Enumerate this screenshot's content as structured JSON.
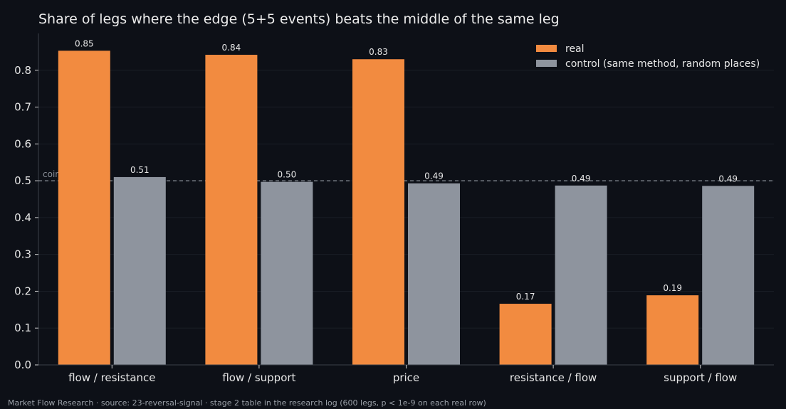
{
  "chart_data": {
    "type": "bar",
    "title": "Share of legs where the edge (5+5 events) beats the middle of the same leg",
    "categories": [
      "flow / resistance",
      "flow / support",
      "price",
      "resistance / flow",
      "support / flow"
    ],
    "series": [
      {
        "name": "real",
        "color": "#f28b40",
        "values": [
          0.853,
          0.842,
          0.83,
          0.166,
          0.189
        ],
        "labels": [
          "0.85",
          "0.84",
          "0.83",
          "0.17",
          "0.19"
        ]
      },
      {
        "name": "control (same method, random places)",
        "color": "#8e949e",
        "values": [
          0.51,
          0.497,
          0.493,
          0.487,
          0.486
        ],
        "labels": [
          "0.51",
          "0.50",
          "0.49",
          "0.49",
          "0.49"
        ]
      }
    ],
    "ylim": [
      0,
      0.9
    ],
    "yticks": [
      "0.0",
      "0.1",
      "0.2",
      "0.3",
      "0.4",
      "0.5",
      "0.6",
      "0.7",
      "0.8"
    ],
    "reference_line": {
      "value": 0.5,
      "label": "coin flip"
    },
    "legend_position": "top-right",
    "grid": true
  },
  "footer": "Market Flow Research · source: 23-reversal-signal · stage 2 table in the research log (600 legs, p < 1e-9 on each real row)"
}
